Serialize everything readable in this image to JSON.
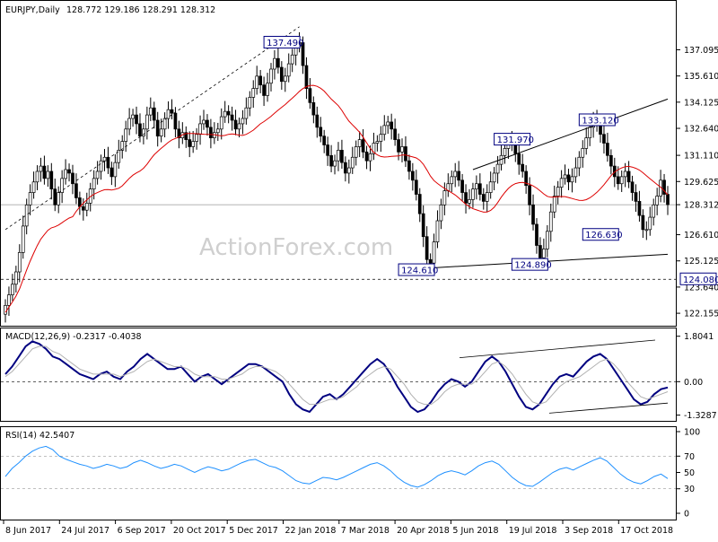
{
  "header": {
    "symbol_tf": "EURJPY,Daily",
    "ohlc": "128.772 129.186 128.291 128.312"
  },
  "watermark": "ActionForex.com",
  "colors": {
    "candle": "#000000",
    "ma": "#dd0000",
    "macd_main": "#000080",
    "macd_signal": "#b0b0b0",
    "rsi": "#1e90ff",
    "trend": "#000000",
    "label_box_border": "#000080",
    "grid_line": "#999999"
  },
  "chart_data": [
    {
      "type": "candlestick",
      "title": "EURJPY,Daily",
      "ylim": [
        121.6,
        138.9
      ],
      "y_ticks": [
        137.095,
        135.61,
        134.125,
        132.64,
        131.11,
        129.625,
        128.312,
        126.61,
        125.125,
        123.64,
        122.155
      ],
      "current_price": 128.312,
      "support_level": 124.08,
      "x_tick_labels": [
        "8 Jun 2017",
        "24 Jul 2017",
        "6 Sep 2017",
        "20 Oct 2017",
        "5 Dec 2017",
        "22 Jan 2018",
        "7 Mar 2018",
        "20 Apr 2018",
        "5 Jun 2018",
        "19 Jul 2018",
        "3 Sep 2018",
        "17 Oct 2018"
      ],
      "key_levels": [
        {
          "label": "137.490",
          "value": 137.49
        },
        {
          "label": "131.970",
          "value": 131.97
        },
        {
          "label": "133.120",
          "value": 133.12
        },
        {
          "label": "126.630",
          "value": 126.63
        },
        {
          "label": "124.610",
          "value": 124.61
        },
        {
          "label": "124.890",
          "value": 124.89
        },
        {
          "label": "124.080",
          "value": 124.08
        }
      ],
      "closes": [
        122.6,
        123.2,
        123.8,
        124.5,
        125.6,
        127.1,
        128.3,
        129.0,
        129.6,
        130.2,
        130.5,
        129.8,
        130.2,
        129.2,
        128.3,
        129.0,
        129.8,
        130.3,
        130.1,
        129.5,
        128.7,
        128.2,
        128.0,
        128.4,
        129.2,
        129.8,
        130.2,
        130.8,
        131.0,
        130.4,
        129.9,
        130.7,
        131.4,
        131.9,
        132.6,
        133.2,
        133.4,
        132.9,
        132.2,
        132.6,
        133.4,
        133.8,
        133.1,
        132.2,
        132.6,
        133.2,
        133.7,
        133.5,
        132.6,
        132.1,
        132.4,
        132.0,
        131.6,
        131.9,
        132.3,
        132.9,
        133.1,
        132.7,
        132.1,
        132.4,
        132.6,
        133.3,
        133.6,
        133.4,
        133.1,
        132.6,
        132.9,
        133.2,
        133.8,
        134.4,
        134.9,
        135.6,
        135.1,
        134.5,
        135.2,
        136.0,
        136.6,
        136.1,
        135.3,
        135.6,
        136.3,
        136.8,
        137.3,
        137.5,
        136.2,
        134.9,
        134.1,
        133.4,
        132.7,
        132.2,
        131.7,
        131.1,
        130.5,
        130.8,
        131.4,
        130.7,
        130.1,
        130.4,
        131.0,
        131.6,
        132.0,
        131.3,
        130.8,
        131.2,
        131.8,
        131.9,
        132.3,
        132.8,
        133.0,
        132.6,
        132.0,
        131.3,
        131.6,
        130.8,
        130.2,
        129.7,
        128.9,
        127.8,
        126.5,
        125.2,
        125.0,
        126.2,
        127.4,
        128.3,
        129.1,
        129.5,
        129.9,
        130.2,
        129.7,
        129.0,
        128.4,
        128.6,
        129.2,
        129.5,
        128.9,
        128.5,
        129.0,
        129.6,
        130.1,
        130.6,
        131.1,
        131.5,
        131.9,
        131.7,
        131.2,
        130.6,
        130.2,
        129.4,
        128.3,
        127.2,
        126.0,
        125.3,
        125.8,
        126.8,
        127.9,
        128.8,
        129.3,
        129.8,
        130.0,
        129.6,
        129.9,
        130.4,
        131.0,
        131.5,
        132.1,
        132.7,
        133.1,
        132.8,
        132.3,
        131.8,
        131.1,
        130.5,
        129.9,
        129.5,
        129.9,
        130.2,
        129.6,
        129.0,
        128.5,
        127.7,
        126.9,
        126.9,
        127.6,
        128.3,
        128.8,
        129.7,
        128.9,
        128.312
      ]
    },
    {
      "type": "line",
      "title": "MACD(12,26,9) -0.2317 -0.4038",
      "ylim": [
        -1.45,
        1.9
      ],
      "y_ticks": [
        1.8041,
        0.0,
        -1.3287
      ],
      "series": [
        {
          "name": "MACD",
          "values": [
            0.3,
            0.6,
            1.0,
            1.4,
            1.6,
            1.5,
            1.3,
            1.0,
            0.9,
            0.7,
            0.5,
            0.3,
            0.2,
            0.1,
            0.3,
            0.4,
            0.2,
            0.1,
            0.4,
            0.6,
            0.9,
            1.1,
            0.9,
            0.7,
            0.5,
            0.5,
            0.6,
            0.3,
            0.0,
            0.2,
            0.3,
            0.1,
            -0.1,
            0.1,
            0.3,
            0.5,
            0.7,
            0.7,
            0.6,
            0.4,
            0.2,
            0.0,
            -0.5,
            -0.9,
            -1.1,
            -1.2,
            -0.9,
            -0.6,
            -0.5,
            -0.7,
            -0.5,
            -0.2,
            0.1,
            0.4,
            0.7,
            0.9,
            0.7,
            0.3,
            -0.2,
            -0.6,
            -1.0,
            -1.2,
            -1.1,
            -0.8,
            -0.4,
            -0.1,
            0.1,
            0.0,
            -0.2,
            0.0,
            0.4,
            0.8,
            1.0,
            0.8,
            0.4,
            -0.1,
            -0.6,
            -1.0,
            -1.1,
            -0.9,
            -0.5,
            -0.1,
            0.2,
            0.3,
            0.2,
            0.5,
            0.8,
            1.0,
            1.1,
            0.9,
            0.5,
            0.1,
            -0.3,
            -0.7,
            -0.9,
            -0.8,
            -0.5,
            -0.3,
            -0.23
          ]
        },
        {
          "name": "Signal",
          "values": [
            0.2,
            0.4,
            0.7,
            1.0,
            1.3,
            1.4,
            1.4,
            1.2,
            1.1,
            0.9,
            0.7,
            0.5,
            0.4,
            0.3,
            0.3,
            0.3,
            0.3,
            0.2,
            0.3,
            0.4,
            0.6,
            0.8,
            0.9,
            0.8,
            0.7,
            0.6,
            0.6,
            0.5,
            0.3,
            0.2,
            0.2,
            0.2,
            0.1,
            0.1,
            0.2,
            0.3,
            0.5,
            0.6,
            0.6,
            0.5,
            0.4,
            0.2,
            -0.1,
            -0.4,
            -0.7,
            -0.9,
            -0.9,
            -0.8,
            -0.7,
            -0.7,
            -0.6,
            -0.4,
            -0.2,
            0.1,
            0.3,
            0.5,
            0.6,
            0.5,
            0.2,
            -0.1,
            -0.5,
            -0.8,
            -0.9,
            -0.9,
            -0.7,
            -0.4,
            -0.2,
            -0.1,
            -0.1,
            -0.1,
            0.1,
            0.4,
            0.7,
            0.8,
            0.6,
            0.3,
            -0.1,
            -0.5,
            -0.8,
            -0.9,
            -0.8,
            -0.5,
            -0.2,
            0.0,
            0.1,
            0.2,
            0.4,
            0.6,
            0.8,
            0.9,
            0.7,
            0.4,
            0.0,
            -0.3,
            -0.6,
            -0.7,
            -0.6,
            -0.5,
            -0.4
          ]
        }
      ]
    },
    {
      "type": "line",
      "title": "RSI(14) 42.5407",
      "ylim": [
        0,
        100
      ],
      "y_ticks": [
        100,
        70,
        50,
        30,
        0
      ],
      "levels": [
        70,
        30
      ],
      "series": [
        {
          "name": "RSI",
          "values": [
            45,
            55,
            62,
            70,
            76,
            80,
            82,
            78,
            70,
            66,
            63,
            60,
            58,
            55,
            57,
            60,
            58,
            55,
            57,
            62,
            65,
            62,
            58,
            55,
            57,
            60,
            58,
            54,
            50,
            54,
            57,
            55,
            52,
            54,
            58,
            62,
            65,
            66,
            62,
            58,
            56,
            52,
            46,
            40,
            37,
            36,
            40,
            44,
            43,
            41,
            44,
            48,
            52,
            56,
            60,
            62,
            58,
            52,
            44,
            38,
            34,
            32,
            35,
            40,
            46,
            50,
            52,
            50,
            47,
            52,
            58,
            62,
            64,
            60,
            52,
            44,
            38,
            34,
            33,
            38,
            44,
            50,
            54,
            56,
            53,
            57,
            61,
            65,
            68,
            64,
            56,
            48,
            42,
            38,
            36,
            40,
            45,
            48,
            42.54
          ]
        }
      ]
    }
  ]
}
